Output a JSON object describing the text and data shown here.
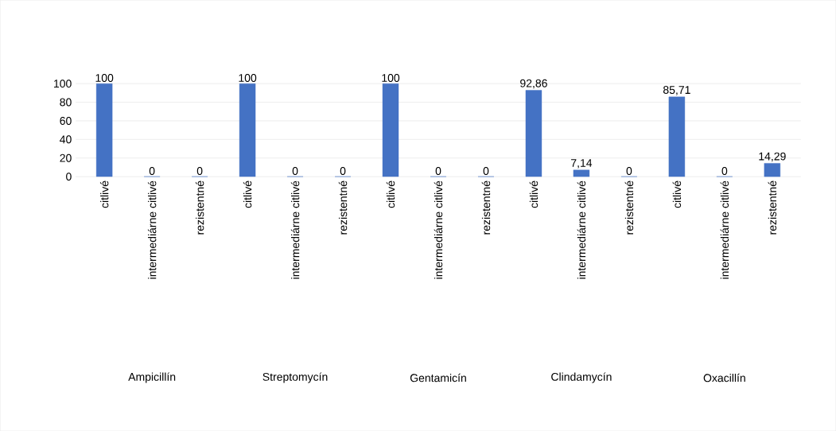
{
  "chart_data": {
    "type": "bar",
    "color": "#4472c4",
    "categories": [
      "citlivé",
      "intermediárne citlivé",
      "rezistentné",
      "citlivé",
      "intermediárne citlivé",
      "rezistentné",
      "citlivé",
      "intermediárne citlivé",
      "rezistentné",
      "citlivé",
      "intermediárne citlivé",
      "rezistentné",
      "citlivé",
      "intermediárne citlivé",
      "rezistentné"
    ],
    "values": [
      100,
      0,
      0,
      100,
      0,
      0,
      100,
      0,
      0,
      92.86,
      7.14,
      0,
      85.71,
      0,
      14.29
    ],
    "value_labels": [
      "100",
      "0",
      "0",
      "100",
      "0",
      "0",
      "100",
      "0",
      "0",
      "92,86",
      "7,14",
      "0",
      "85,71",
      "0",
      "14,29"
    ],
    "annotations": [
      "Ampicillín",
      "Streptomycín",
      "Gentamicín",
      "Clindamycín",
      "Oxacillín"
    ],
    "ylim": [
      0,
      100
    ],
    "yticks": [
      0,
      20,
      40,
      60,
      80,
      100
    ],
    "grid": "y"
  }
}
